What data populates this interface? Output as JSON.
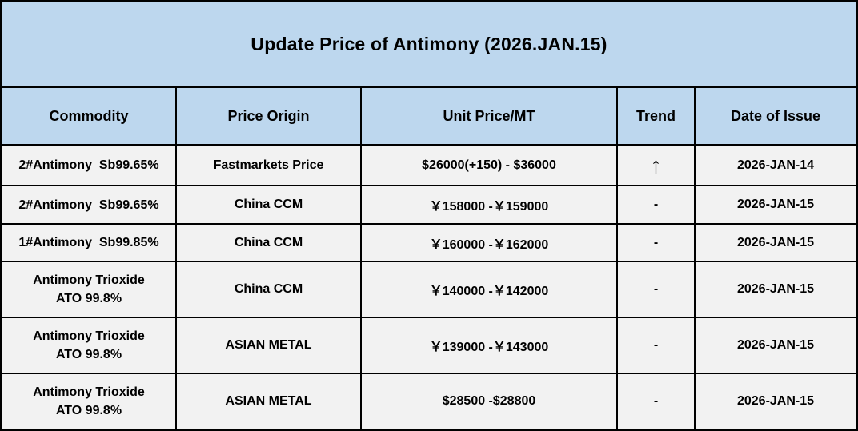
{
  "title": "Update Price of Antimony (2026.JAN.15)",
  "columns": {
    "commodity": "Commodity",
    "origin": "Price Origin",
    "price": "Unit Price/MT",
    "trend": "Trend",
    "date": "Date of Issue"
  },
  "rows": [
    {
      "commodity": "2#Antimony  Sb99.65%",
      "origin": "Fastmarkets Price",
      "price": "$26000(+150) - $36000",
      "trend": "↑",
      "date": "2026-JAN-14"
    },
    {
      "commodity": "2#Antimony  Sb99.65%",
      "origin": "China CCM",
      "price": "￥158000 -￥159000",
      "trend": "-",
      "date": "2026-JAN-15"
    },
    {
      "commodity": "1#Antimony  Sb99.85%",
      "origin": "China CCM",
      "price": "￥160000 -￥162000",
      "trend": "-",
      "date": "2026-JAN-15"
    },
    {
      "commodity": "Antimony Trioxide\nATO 99.8%",
      "origin": "China CCM",
      "price": "￥140000 -￥142000",
      "trend": "-",
      "date": "2026-JAN-15"
    },
    {
      "commodity": "Antimony Trioxide\nATO 99.8%",
      "origin": "ASIAN METAL",
      "price": "￥139000 -￥143000",
      "trend": "-",
      "date": "2026-JAN-15"
    },
    {
      "commodity": "Antimony Trioxide\nATO 99.8%",
      "origin": "ASIAN METAL",
      "price": "$28500 -$28800",
      "trend": "-",
      "date": "2026-JAN-15"
    }
  ],
  "colors": {
    "header_bg": "#bdd7ee",
    "row_bg": "#f2f2f2",
    "border": "#000000",
    "text": "#000000"
  }
}
